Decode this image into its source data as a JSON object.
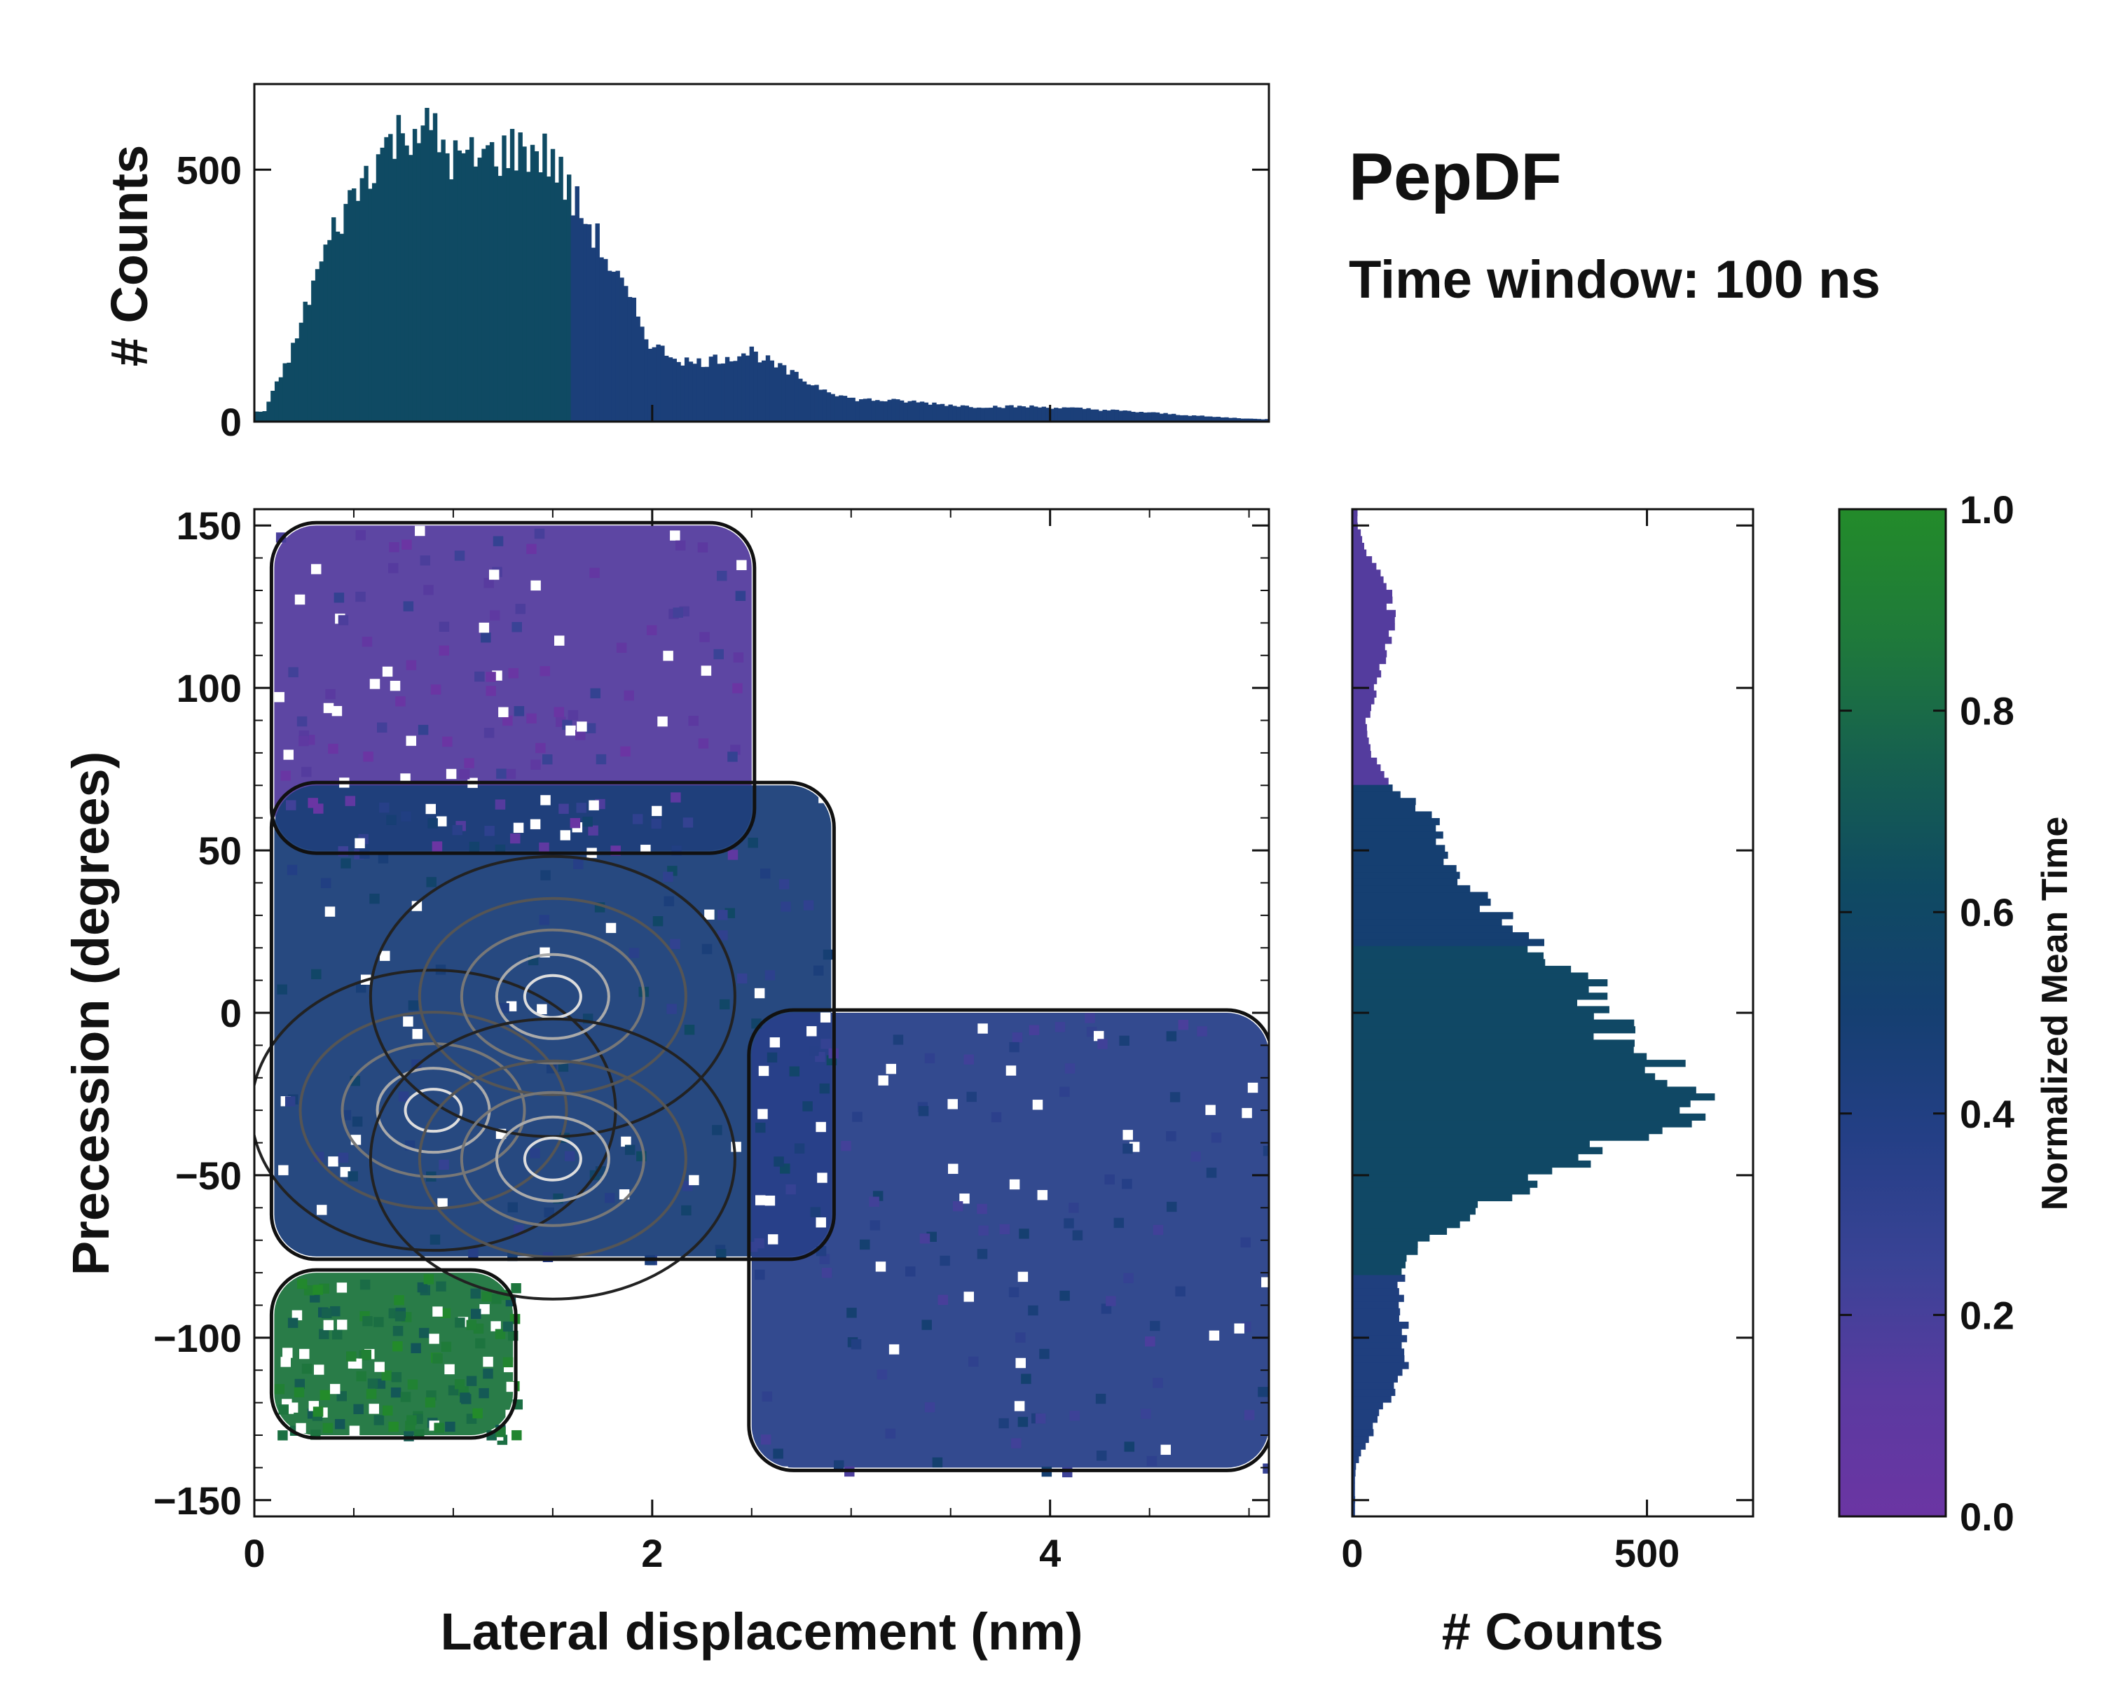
{
  "chart_data": [
    {
      "id": "main_2d",
      "type": "heatmap",
      "xlabel": "Lateral displacement (nm)",
      "ylabel": "Precession (degrees)",
      "xlim": [
        0,
        5.1
      ],
      "ylim": [
        -155,
        155
      ],
      "xticks": [
        "0",
        "2",
        "4"
      ],
      "yticks": [
        "150",
        "100",
        "50",
        "0",
        "−50",
        "−100",
        "−150"
      ],
      "xtick_values": [
        0,
        2,
        4
      ],
      "ytick_values": [
        150,
        100,
        50,
        0,
        -50,
        -100,
        -150
      ],
      "color_meaning": "Normalized Mean Time",
      "regions": [
        {
          "name": "upper lobe (early)",
          "x_range": [
            0.1,
            2.5
          ],
          "y_range": [
            50,
            150
          ],
          "mean_time": 0.15
        },
        {
          "name": "central core",
          "x_range": [
            0.1,
            2.9
          ],
          "y_range": [
            -75,
            70
          ],
          "mean_time": 0.45
        },
        {
          "name": "lower-left lobe (late)",
          "x_range": [
            0.1,
            1.3
          ],
          "y_range": [
            -130,
            -80
          ],
          "mean_time": 0.85
        },
        {
          "name": "right wing",
          "x_range": [
            2.5,
            5.1
          ],
          "y_range": [
            -140,
            0
          ],
          "mean_time": 0.35
        }
      ],
      "density_peaks": [
        {
          "x": 0.9,
          "y": -30
        },
        {
          "x": 1.5,
          "y": 5
        },
        {
          "x": 1.5,
          "y": -45
        }
      ]
    },
    {
      "id": "top_hist",
      "type": "bar",
      "ylabel": "# Counts",
      "xlim": [
        0,
        5.1
      ],
      "ylim": [
        0,
        670
      ],
      "yticks": [
        "0",
        "500"
      ],
      "ytick_values": [
        0,
        500
      ],
      "x": [
        0.05,
        0.2,
        0.3,
        0.4,
        0.5,
        0.6,
        0.7,
        0.8,
        0.9,
        1.0,
        1.1,
        1.2,
        1.3,
        1.4,
        1.5,
        1.6,
        1.7,
        1.8,
        1.9,
        2.0,
        2.2,
        2.4,
        2.5,
        2.6,
        2.8,
        3.0,
        3.3,
        3.6,
        3.9,
        4.2,
        4.5,
        4.8,
        5.05
      ],
      "values": [
        20,
        150,
        280,
        380,
        450,
        520,
        560,
        590,
        570,
        520,
        520,
        530,
        540,
        540,
        520,
        440,
        380,
        300,
        230,
        150,
        115,
        130,
        140,
        115,
        75,
        45,
        40,
        30,
        30,
        25,
        18,
        10,
        5
      ]
    },
    {
      "id": "right_hist",
      "type": "bar",
      "orientation": "horizontal",
      "xlabel": "# Counts",
      "xlim": [
        0,
        680
      ],
      "xticks": [
        "0",
        "500"
      ],
      "xtick_values": [
        0,
        500
      ],
      "ylim": [
        -155,
        155
      ],
      "y": [
        150,
        140,
        130,
        120,
        110,
        100,
        90,
        80,
        70,
        60,
        50,
        40,
        30,
        20,
        10,
        0,
        -10,
        -20,
        -30,
        -40,
        -50,
        -60,
        -70,
        -80,
        -90,
        -100,
        -110,
        -120,
        -130,
        -140
      ],
      "values": [
        8,
        30,
        60,
        70,
        55,
        40,
        25,
        30,
        70,
        130,
        160,
        180,
        260,
        300,
        400,
        420,
        470,
        560,
        600,
        450,
        330,
        220,
        120,
        90,
        80,
        90,
        90,
        60,
        30,
        5
      ]
    },
    {
      "id": "colorbar",
      "type": "heatmap",
      "label": "Normalized Mean Time",
      "ylim": [
        0,
        1
      ],
      "ticks": [
        "0.0",
        "0.2",
        "0.4",
        "0.6",
        "0.8",
        "1.0"
      ],
      "tick_values": [
        0,
        0.2,
        0.4,
        0.6,
        0.8,
        1.0
      ],
      "colormap": [
        "#6b35a3",
        "#5a3aa0",
        "#3a4396",
        "#243f86",
        "#153f71",
        "#0f4a62",
        "#16604f",
        "#1f7a3a",
        "#238b2a"
      ]
    }
  ],
  "annotation": {
    "title": "PepDF",
    "subtitle": "Time window: 100 ns"
  },
  "colors": {
    "purple": "#6b35a3",
    "blue": "#233f86",
    "teal": "#0f4a62",
    "green": "#238b2a",
    "contour": "#111111"
  }
}
